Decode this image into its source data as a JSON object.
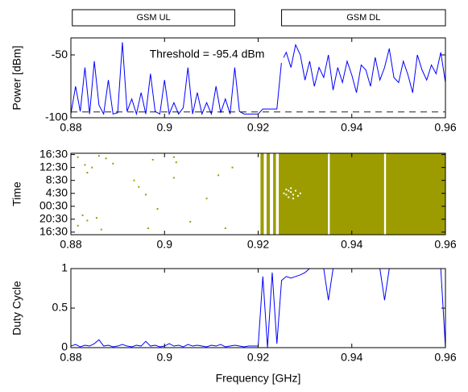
{
  "chart_data": [
    {
      "type": "line",
      "ylabel": "Power [dBm]",
      "x": [
        0.88,
        0.881,
        0.882,
        0.883,
        0.884,
        0.885,
        0.886,
        0.887,
        0.888,
        0.889,
        0.89,
        0.891,
        0.892,
        0.893,
        0.894,
        0.895,
        0.896,
        0.897,
        0.898,
        0.899,
        0.9,
        0.901,
        0.902,
        0.903,
        0.904,
        0.905,
        0.906,
        0.907,
        0.908,
        0.909,
        0.91,
        0.911,
        0.912,
        0.913,
        0.914,
        0.915,
        0.916,
        0.917,
        0.918,
        0.919,
        0.92,
        0.921,
        0.922,
        0.923,
        0.924,
        0.925,
        0.926,
        0.927,
        0.928,
        0.929,
        0.93,
        0.931,
        0.932,
        0.933,
        0.934,
        0.935,
        0.936,
        0.937,
        0.938,
        0.939,
        0.94,
        0.941,
        0.942,
        0.943,
        0.944,
        0.945,
        0.946,
        0.947,
        0.948,
        0.949,
        0.95,
        0.951,
        0.952,
        0.953,
        0.954,
        0.955,
        0.956,
        0.957,
        0.958,
        0.959,
        0.96
      ],
      "series": [
        {
          "color": "#0000ff",
          "values": [
            -97,
            -75,
            -95,
            -60,
            -97,
            -55,
            -90,
            -97,
            -70,
            -97,
            -96,
            -40,
            -95,
            -85,
            -97,
            -80,
            -97,
            -65,
            -95,
            -97,
            -70,
            -97,
            -88,
            -97,
            -92,
            -60,
            -97,
            -80,
            -97,
            -88,
            -97,
            -75,
            -96,
            -85,
            -97,
            -60,
            -95,
            -97,
            -97,
            -97,
            -97,
            -93,
            -93,
            -93,
            -93,
            -55,
            -48,
            -60,
            -42,
            -50,
            -70,
            -55,
            -75,
            -60,
            -68,
            -50,
            -78,
            -60,
            -72,
            -55,
            -66,
            -80,
            -58,
            -62,
            -75,
            -52,
            -70,
            -60,
            -45,
            -68,
            -72,
            -55,
            -66,
            -80,
            -50,
            -62,
            -70,
            -58,
            -65,
            -48,
            -72
          ]
        }
      ],
      "threshold": -95.4,
      "threshold_label": "Threshold = -95.4 dBm",
      "bands": [
        {
          "label": "GSM UL",
          "x0": 0.8803,
          "x1": 0.915
        },
        {
          "label": "GSM DL",
          "x0": 0.925,
          "x1": 0.96
        }
      ],
      "xlim": [
        0.88,
        0.96
      ],
      "xticks": [
        0.88,
        0.9,
        0.92,
        0.94,
        0.96
      ],
      "ylim": [
        -100,
        -36.5
      ],
      "yticks": [
        -50,
        -100
      ]
    },
    {
      "type": "raster",
      "ylabel": "Time",
      "color": "#9c9c00",
      "spans": [
        {
          "x0": 0.9205,
          "x1": 0.9212
        },
        {
          "x0": 0.9218,
          "x1": 0.9225
        },
        {
          "x0": 0.9232,
          "x1": 0.9238
        },
        {
          "x0": 0.9244,
          "x1": 0.9349
        },
        {
          "x0": 0.9353,
          "x1": 0.9469
        },
        {
          "x0": 0.9473,
          "x1": 0.96
        }
      ],
      "series": [
        {
          "color": "#9c9c00",
          "x": [
            0.8815,
            0.883,
            0.8835,
            0.8845,
            0.886,
            0.8875,
            0.889,
            0.8825,
            0.8835,
            0.8815,
            0.8855,
            0.8865,
            0.8935,
            0.8945,
            0.896,
            0.8985,
            0.902,
            0.9025,
            0.902,
            0.8965,
            0.9055,
            0.909,
            0.9115,
            0.913,
            0.9145,
            0.8975
          ],
          "values": [
            5.8,
            5.2,
            4.6,
            5.0,
            5.9,
            5.7,
            5.3,
            1.3,
            0.9,
            0.5,
            1.1,
            0.2,
            4.0,
            3.5,
            2.9,
            1.8,
            5.8,
            5.4,
            4.2,
            0.3,
            0.8,
            2.6,
            4.4,
            0.3,
            5.0,
            5.6
          ]
        },
        {
          "color": "#ffffff",
          "x": [
            0.9255,
            0.926,
            0.9265,
            0.927,
            0.9275,
            0.928,
            0.9285,
            0.927,
            0.926,
            0.929,
            0.9265,
            0.9275
          ],
          "values": [
            3.0,
            3.3,
            2.7,
            3.1,
            2.9,
            3.2,
            2.8,
            3.4,
            2.9,
            3.0,
            3.2,
            2.6
          ]
        }
      ],
      "xlim": [
        0.88,
        0.96
      ],
      "xticks": [
        0.88,
        0.9,
        0.92,
        0.94,
        0.96
      ],
      "ylim": [
        -0.2,
        6.1
      ],
      "yticks": [
        {
          "value": 6,
          "label": "16:30"
        },
        {
          "value": 5,
          "label": "12:30"
        },
        {
          "value": 4,
          "label": "8:30"
        },
        {
          "value": 3,
          "label": "4:30"
        },
        {
          "value": 2,
          "label": "00:30"
        },
        {
          "value": 1,
          "label": "20:30"
        },
        {
          "value": 0,
          "label": "16:30"
        }
      ]
    },
    {
      "type": "line",
      "ylabel": "Duty Cycle",
      "xlabel": "Frequency [GHz]",
      "x": [
        0.88,
        0.881,
        0.882,
        0.883,
        0.884,
        0.885,
        0.886,
        0.887,
        0.888,
        0.889,
        0.89,
        0.891,
        0.892,
        0.893,
        0.894,
        0.895,
        0.896,
        0.897,
        0.898,
        0.899,
        0.9,
        0.901,
        0.902,
        0.903,
        0.904,
        0.905,
        0.906,
        0.907,
        0.908,
        0.909,
        0.91,
        0.911,
        0.912,
        0.913,
        0.914,
        0.915,
        0.916,
        0.917,
        0.918,
        0.919,
        0.92,
        0.921,
        0.922,
        0.923,
        0.924,
        0.925,
        0.926,
        0.927,
        0.928,
        0.929,
        0.93,
        0.931,
        0.932,
        0.933,
        0.934,
        0.935,
        0.936,
        0.937,
        0.938,
        0.939,
        0.94,
        0.941,
        0.942,
        0.943,
        0.944,
        0.945,
        0.946,
        0.947,
        0.948,
        0.949,
        0.95,
        0.951,
        0.952,
        0.953,
        0.954,
        0.955,
        0.956,
        0.957,
        0.958,
        0.959,
        0.96
      ],
      "series": [
        {
          "color": "#0000ff",
          "values": [
            0.02,
            0.04,
            0.01,
            0.03,
            0.02,
            0.05,
            0.1,
            0.02,
            0.03,
            0.01,
            0.02,
            0.04,
            0.02,
            0.01,
            0.03,
            0.02,
            0.08,
            0.02,
            0.03,
            0.01,
            0.02,
            0.05,
            0.02,
            0.03,
            0.01,
            0.04,
            0.02,
            0.03,
            0.02,
            0.01,
            0.03,
            0.02,
            0.04,
            0.01,
            0.02,
            0.03,
            0.02,
            0.01,
            0.02,
            0.02,
            0.02,
            0.9,
            0.0,
            0.95,
            0.05,
            0.85,
            0.9,
            0.88,
            0.9,
            0.92,
            0.95,
            1,
            1,
            1,
            1,
            0.6,
            1,
            1,
            1,
            1,
            1,
            1,
            1,
            1,
            1,
            1,
            1,
            0.6,
            1,
            1,
            1,
            1,
            1,
            1,
            1,
            1,
            1,
            1,
            1,
            1,
            0
          ]
        }
      ],
      "xlim": [
        0.88,
        0.96
      ],
      "xticks": [
        0.88,
        0.9,
        0.92,
        0.94,
        0.96
      ],
      "ylim": [
        0,
        1
      ],
      "yticks": [
        0,
        0.5,
        1
      ]
    }
  ]
}
